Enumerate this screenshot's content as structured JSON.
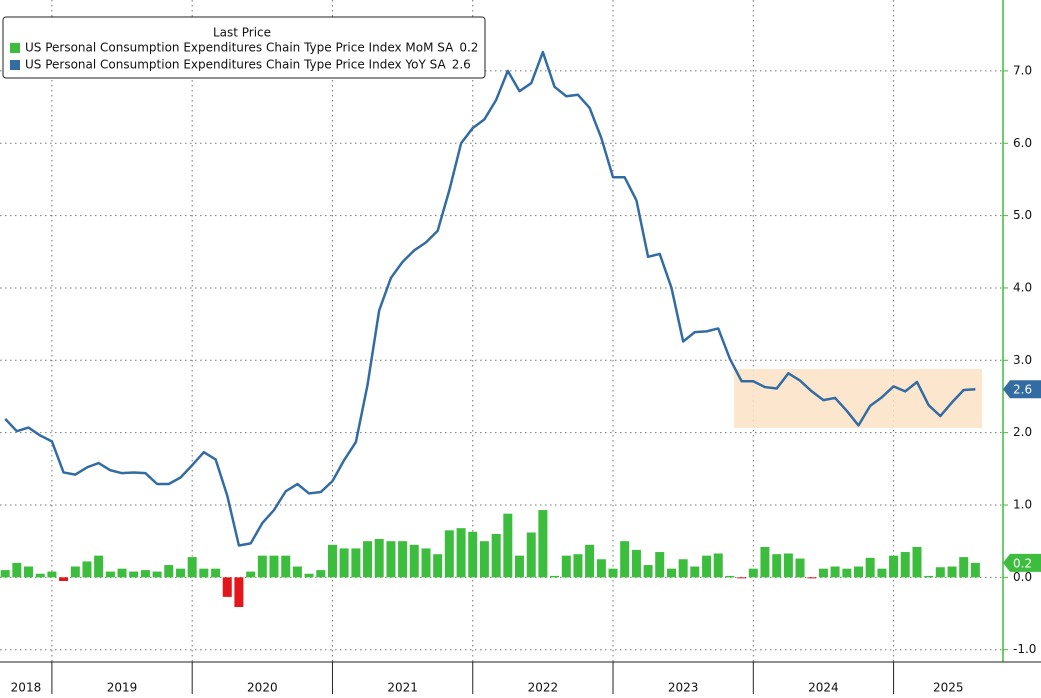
{
  "chart_data": {
    "type": "combo",
    "legend_title": "Last Price",
    "legend": "top-left",
    "grid": true,
    "negative_color": "#e3161b",
    "x": [
      2018.667,
      2018.75,
      2018.833,
      2018.917,
      2019.0,
      2019.083,
      2019.167,
      2019.25,
      2019.333,
      2019.417,
      2019.5,
      2019.583,
      2019.667,
      2019.75,
      2019.833,
      2019.917,
      2020.0,
      2020.083,
      2020.167,
      2020.25,
      2020.333,
      2020.417,
      2020.5,
      2020.583,
      2020.667,
      2020.75,
      2020.833,
      2020.917,
      2021.0,
      2021.083,
      2021.167,
      2021.25,
      2021.333,
      2021.417,
      2021.5,
      2021.583,
      2021.667,
      2021.75,
      2021.833,
      2021.917,
      2022.0,
      2022.083,
      2022.167,
      2022.25,
      2022.333,
      2022.417,
      2022.5,
      2022.583,
      2022.667,
      2022.75,
      2022.833,
      2022.917,
      2023.0,
      2023.083,
      2023.167,
      2023.25,
      2023.333,
      2023.417,
      2023.5,
      2023.583,
      2023.667,
      2023.75,
      2023.833,
      2023.917,
      2024.0,
      2024.083,
      2024.167,
      2024.25,
      2024.333,
      2024.417,
      2024.5,
      2024.583,
      2024.667,
      2024.75,
      2024.833,
      2024.917,
      2025.0,
      2025.083,
      2025.167,
      2025.25,
      2025.333,
      2025.417,
      2025.5,
      2025.583
    ],
    "xlim": [
      2018.63,
      2025.78
    ],
    "xticks": [
      2018,
      2019,
      2020,
      2021,
      2022,
      2023,
      2024,
      2025
    ],
    "ylim": [
      -1.17,
      7.98
    ],
    "yticks": [
      {
        "value": -1,
        "label": "-1.0"
      },
      {
        "value": 0,
        "label": "0.0"
      },
      {
        "value": 1,
        "label": "1.0"
      },
      {
        "value": 2,
        "label": "2.0"
      },
      {
        "value": 3,
        "label": "3.0"
      },
      {
        "value": 4,
        "label": "4.0"
      },
      {
        "value": 5,
        "label": "5.0"
      },
      {
        "value": 6,
        "label": "6.0"
      },
      {
        "value": 7,
        "label": "7.0"
      }
    ],
    "series": [
      {
        "name": "US Personal Consumption Expenditures Chain Type Price Index MoM SA",
        "type": "bar",
        "color": "#3dbd3d",
        "values": [
          0.1,
          0.2,
          0.15,
          0.05,
          0.08,
          -0.05,
          0.15,
          0.22,
          0.3,
          0.08,
          0.12,
          0.08,
          0.1,
          0.08,
          0.17,
          0.12,
          0.28,
          0.12,
          0.12,
          -0.27,
          -0.41,
          0.08,
          0.3,
          0.3,
          0.3,
          0.15,
          0.05,
          0.1,
          0.45,
          0.4,
          0.4,
          0.5,
          0.53,
          0.5,
          0.5,
          0.45,
          0.4,
          0.32,
          0.65,
          0.68,
          0.63,
          0.5,
          0.6,
          0.88,
          0.3,
          0.62,
          0.93,
          0.02,
          0.3,
          0.32,
          0.45,
          0.25,
          0.12,
          0.5,
          0.38,
          0.17,
          0.35,
          0.12,
          0.25,
          0.15,
          0.3,
          0.33,
          0.02,
          -0.01,
          0.12,
          0.42,
          0.32,
          0.33,
          0.26,
          -0.01,
          0.12,
          0.15,
          0.12,
          0.15,
          0.27,
          0.12,
          0.3,
          0.35,
          0.42,
          0.02,
          0.14,
          0.15,
          0.28,
          0.2
        ]
      },
      {
        "name": "US Personal Consumption Expenditures Chain Type Price Index YoY SA",
        "type": "line",
        "color": "#336ca3",
        "values": [
          2.19,
          2.02,
          2.07,
          1.96,
          1.88,
          1.45,
          1.42,
          1.52,
          1.58,
          1.48,
          1.44,
          1.45,
          1.44,
          1.29,
          1.29,
          1.38,
          1.55,
          1.73,
          1.63,
          1.13,
          0.44,
          0.47,
          0.75,
          0.93,
          1.19,
          1.29,
          1.16,
          1.18,
          1.33,
          1.62,
          1.87,
          2.66,
          3.69,
          4.14,
          4.36,
          4.52,
          4.63,
          4.79,
          5.35,
          6.0,
          6.21,
          6.33,
          6.6,
          7.0,
          6.72,
          6.83,
          7.26,
          6.78,
          6.65,
          6.67,
          6.49,
          6.07,
          5.53,
          5.53,
          5.21,
          4.43,
          4.47,
          4.0,
          3.26,
          3.39,
          3.4,
          3.44,
          3.02,
          2.71,
          2.71,
          2.63,
          2.61,
          2.82,
          2.72,
          2.57,
          2.45,
          2.48,
          2.3,
          2.1,
          2.37,
          2.49,
          2.64,
          2.57,
          2.7,
          2.38,
          2.23,
          2.42,
          2.59,
          2.6
        ]
      }
    ]
  }
}
